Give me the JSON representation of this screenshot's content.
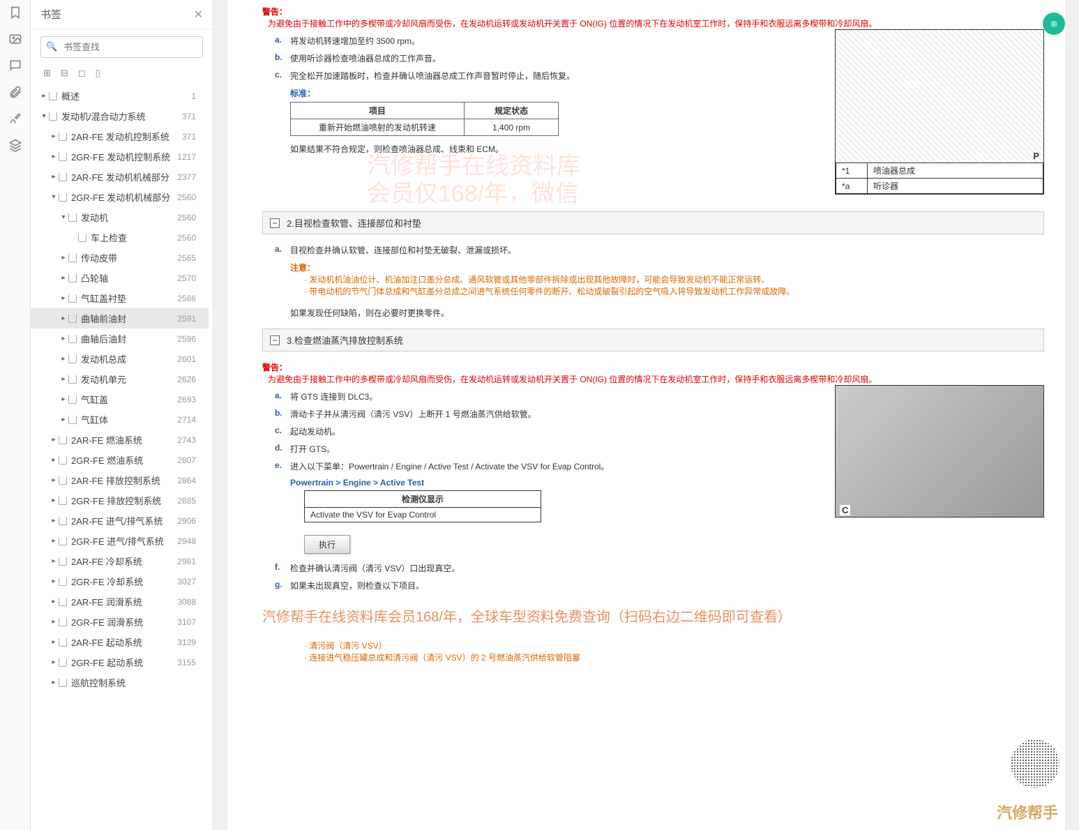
{
  "sidebar": {
    "title": "书签",
    "search_placeholder": "书签查找",
    "items": [
      {
        "d": 0,
        "c": "▸",
        "l": "概述",
        "p": "1"
      },
      {
        "d": 0,
        "c": "▾",
        "l": "发动机/混合动力系统",
        "p": "371"
      },
      {
        "d": 1,
        "c": "▸",
        "l": "2AR-FE 发动机控制系统",
        "p": "371"
      },
      {
        "d": 1,
        "c": "▸",
        "l": "2GR-FE 发动机控制系统",
        "p": "1217"
      },
      {
        "d": 1,
        "c": "▸",
        "l": "2AR-FE 发动机机械部分",
        "p": "2377"
      },
      {
        "d": 1,
        "c": "▾",
        "l": "2GR-FE 发动机机械部分",
        "p": "2560"
      },
      {
        "d": 2,
        "c": "▾",
        "l": "发动机",
        "p": "2560"
      },
      {
        "d": 3,
        "c": "",
        "l": "车上检查",
        "p": "2560"
      },
      {
        "d": 2,
        "c": "▸",
        "l": "传动皮带",
        "p": "2565"
      },
      {
        "d": 2,
        "c": "▸",
        "l": "凸轮轴",
        "p": "2570"
      },
      {
        "d": 2,
        "c": "▸",
        "l": "气缸盖衬垫",
        "p": "2586"
      },
      {
        "d": 2,
        "c": "▸",
        "l": "曲轴前油封",
        "p": "2591",
        "sel": true
      },
      {
        "d": 2,
        "c": "▸",
        "l": "曲轴后油封",
        "p": "2596"
      },
      {
        "d": 2,
        "c": "▸",
        "l": "发动机总成",
        "p": "2601"
      },
      {
        "d": 2,
        "c": "▸",
        "l": "发动机单元",
        "p": "2626"
      },
      {
        "d": 2,
        "c": "▸",
        "l": "气缸盖",
        "p": "2693"
      },
      {
        "d": 2,
        "c": "▸",
        "l": "气缸体",
        "p": "2714"
      },
      {
        "d": 1,
        "c": "▸",
        "l": "2AR-FE 燃油系统",
        "p": "2743"
      },
      {
        "d": 1,
        "c": "▸",
        "l": "2GR-FE 燃油系统",
        "p": "2807"
      },
      {
        "d": 1,
        "c": "▸",
        "l": "2AR-FE 排放控制系统",
        "p": "2864"
      },
      {
        "d": 1,
        "c": "▸",
        "l": "2GR-FE 排放控制系统",
        "p": "2885"
      },
      {
        "d": 1,
        "c": "▸",
        "l": "2AR-FE 进气/排气系统",
        "p": "2906"
      },
      {
        "d": 1,
        "c": "▸",
        "l": "2GR-FE 进气/排气系统",
        "p": "2948"
      },
      {
        "d": 1,
        "c": "▸",
        "l": "2AR-FE 冷却系统",
        "p": "2981"
      },
      {
        "d": 1,
        "c": "▸",
        "l": "2GR-FE 冷却系统",
        "p": "3027"
      },
      {
        "d": 1,
        "c": "▸",
        "l": "2AR-FE 润滑系统",
        "p": "3088"
      },
      {
        "d": 1,
        "c": "▸",
        "l": "2GR-FE 润滑系统",
        "p": "3107"
      },
      {
        "d": 1,
        "c": "▸",
        "l": "2AR-FE 起动系统",
        "p": "3129"
      },
      {
        "d": 1,
        "c": "▸",
        "l": "2GR-FE 起动系统",
        "p": "3155"
      },
      {
        "d": 1,
        "c": "▸",
        "l": "巡航控制系统",
        "p": ""
      }
    ]
  },
  "doc": {
    "warn_h": "警告：",
    "warn1": "为避免由于接触工作中的多楔带或冷却风扇而受伤，在发动机运转或发动机开关置于 ON(IG) 位置的情况下在发动机室工作时，保持手和衣服远离多楔带和冷却风扇。",
    "s1a": "将发动机转速增加至约 3500 rpm。",
    "s1b": "使用听诊器检查喷油器总成的工作声音。",
    "s1c": "完全松开加速踏板时，检查并确认喷油器总成工作声音暂时停止，随后恢复。",
    "std": "标准：",
    "t1h1": "项目",
    "t1h2": "规定状态",
    "t1r1": "重新开始燃油喷射的发动机转速",
    "t1r2": "1,400 rpm",
    "res1": "如果结果不符合规定，则检查喷油器总成、线束和 ECM。",
    "f1a": "*1",
    "f1b": "喷油器总成",
    "f1c": "*a",
    "f1d": "听诊器",
    "sec2": "2.目视检查软管、连接部位和衬垫",
    "s2a": "目视检查并确认软管、连接部位和衬垫无破裂、泄漏或损坏。",
    "att_h": "注意：",
    "att1": "发动机机油油位计、机油加注口盖分总成、通风软管或其他零部件拆除或出现其他故障时，可能会导致发动机不能正常运转。",
    "att2": "带电动机的节气门体总成和气缸盖分总成之间进气系统任何零件的断开、松动或破裂引起的空气吸入将导致发动机工作异常或故障。",
    "res2": "如果发现任何缺陷，则在必要时更换零件。",
    "sec3": "3.检查燃油蒸汽排放控制系统",
    "warn3": "为避免由于接触工作中的多楔带或冷却风扇而受伤，在发动机运转或发动机开关置于 ON(IG) 位置的情况下在发动机室工作时，保持手和衣服远离多楔带和冷却风扇。",
    "s3a": "将 GTS 连接到 DLC3。",
    "s3b": "滑动卡子并从清污阀（清污 VSV）上断开 1 号燃油蒸汽供给软管。",
    "s3c": "起动发动机。",
    "s3d": "打开 GTS。",
    "s3e": "进入以下菜单：Powertrain / Engine / Active Test / Activate the VSV for Evap Control。",
    "pt": "Powertrain > Engine > Active Test",
    "dh": "检测仪显示",
    "dr": "Activate the VSV for Evap Control",
    "btn": "执行",
    "s3f": "检查并确认清污阀（清污 VSV）口出现真空。",
    "s3g": "如果未出现真空，则检查以下项目。",
    "b1": "清污阀（清污 VSV）",
    "b2": "连接进气稳压罐总成和清污阀（清污 VSV）的 2 号燃油蒸汽供给软管阻塞",
    "ad": "汽修帮手在线资料库会员168/年，全球车型资料免费查询（扫码右边二维码即可查看）",
    "wm1": "汽修帮手在线资料库",
    "wm2": "会员仅168/年，微信",
    "brand": "汽修帮手"
  }
}
